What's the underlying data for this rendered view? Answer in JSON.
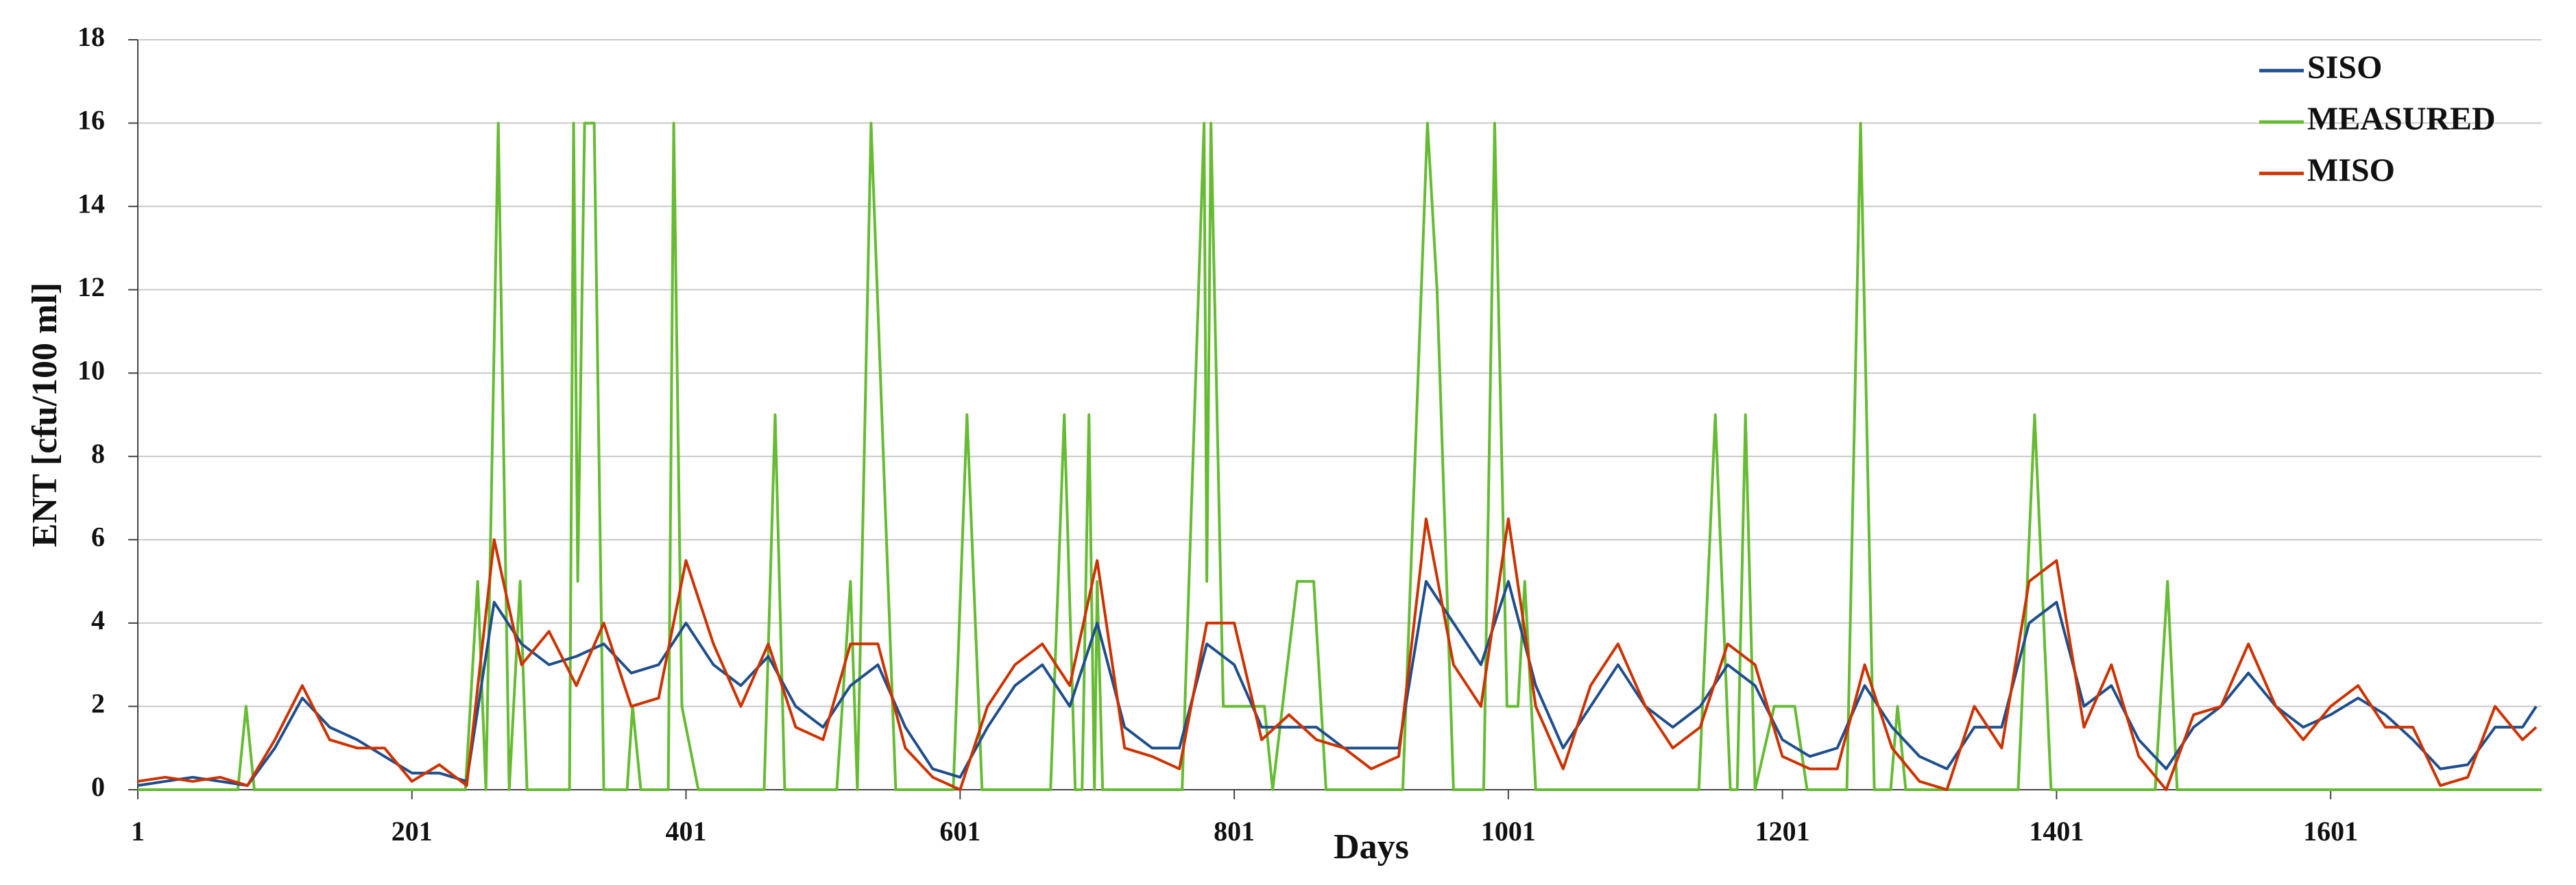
{
  "chart_data": {
    "type": "line",
    "xlabel": "Days",
    "ylabel": "ENT [cfu/100 ml]",
    "x": [
      1,
      21,
      41,
      61,
      81,
      101,
      121,
      141,
      161,
      181,
      201,
      221,
      241,
      261,
      281,
      301,
      321,
      341,
      361,
      381,
      401,
      421,
      441,
      461,
      481,
      501,
      521,
      541,
      561,
      581,
      601,
      621,
      641,
      661,
      681,
      701,
      721,
      741,
      761,
      781,
      801,
      821,
      841,
      861,
      881,
      901,
      921,
      941,
      961,
      981,
      1001,
      1021,
      1041,
      1061,
      1081,
      1101,
      1121,
      1141,
      1161,
      1181,
      1201,
      1221,
      1241,
      1261,
      1281,
      1301,
      1321,
      1341,
      1361,
      1381,
      1401,
      1421,
      1441,
      1461,
      1481,
      1501,
      1521,
      1541,
      1561,
      1581,
      1601,
      1621,
      1641,
      1661,
      1681,
      1701,
      1721,
      1741,
      1751
    ],
    "series": [
      {
        "name": "SISO",
        "color": "#1f4e8c",
        "values": [
          0.1,
          0.2,
          0.3,
          0.2,
          0.1,
          1.0,
          2.2,
          1.5,
          1.2,
          0.8,
          0.4,
          0.4,
          0.2,
          4.5,
          3.5,
          3.0,
          3.2,
          3.5,
          2.8,
          3.0,
          4.0,
          3.0,
          2.5,
          3.2,
          2.0,
          1.5,
          2.5,
          3.0,
          1.5,
          0.5,
          0.3,
          1.5,
          2.5,
          3.0,
          2.0,
          4.0,
          1.5,
          1.0,
          1.0,
          3.5,
          3.0,
          1.5,
          1.5,
          1.5,
          1.0,
          1.0,
          1.0,
          5.0,
          4.0,
          3.0,
          5.0,
          2.5,
          1.0,
          2.0,
          3.0,
          2.0,
          1.5,
          2.0,
          3.0,
          2.5,
          1.2,
          0.8,
          1.0,
          2.5,
          1.5,
          0.8,
          0.5,
          1.5,
          1.5,
          4.0,
          4.5,
          2.0,
          2.5,
          1.2,
          0.5,
          1.5,
          2.0,
          2.8,
          2.0,
          1.5,
          1.8,
          2.2,
          1.8,
          1.2,
          0.5,
          0.6,
          1.5,
          1.5,
          2.0
        ]
      },
      {
        "name": "MEASURED",
        "color": "#66bb33",
        "x": [
          1,
          74,
          80,
          86,
          240,
          249,
          255,
          264,
          272,
          280,
          285,
          316,
          319,
          322,
          327,
          334,
          341,
          358,
          362,
          368,
          388,
          392,
          398,
          410,
          458,
          466,
          473,
          511,
          521,
          526,
          536,
          554,
          596,
          606,
          617,
          667,
          677,
          685,
          690,
          695,
          699,
          701,
          705,
          763,
          779,
          781,
          784,
          793,
          823,
          829,
          847,
          859,
          868,
          924,
          942,
          949,
          961,
          983,
          991,
          1000,
          1008,
          1013,
          1021,
          1140,
          1152,
          1163,
          1168,
          1174,
          1181,
          1195,
          1210,
          1219,
          1248,
          1258,
          1268,
          1280,
          1285,
          1291,
          1373,
          1385,
          1397,
          1473,
          1482,
          1489,
          1755
        ],
        "values": [
          0,
          0,
          2,
          0,
          0,
          5,
          0,
          16,
          0,
          5,
          0,
          0,
          16,
          5,
          16,
          16,
          0,
          0,
          2,
          0,
          0,
          16,
          2,
          0,
          0,
          9,
          0,
          0,
          5,
          0,
          16,
          0,
          0,
          9,
          0,
          0,
          9,
          0,
          0,
          9,
          0,
          5,
          0,
          0,
          16,
          5,
          16,
          2,
          2,
          0,
          5,
          5,
          0,
          0,
          16,
          12,
          0,
          0,
          16,
          2,
          2,
          5,
          0,
          0,
          9,
          0,
          0,
          9,
          0,
          2,
          2,
          0,
          0,
          16,
          0,
          0,
          2,
          0,
          0,
          9,
          0,
          0,
          5,
          0,
          0
        ]
      },
      {
        "name": "MISO",
        "color": "#cc3300",
        "values": [
          0.2,
          0.3,
          0.2,
          0.3,
          0.1,
          1.2,
          2.5,
          1.2,
          1.0,
          1.0,
          0.2,
          0.6,
          0.1,
          6.0,
          3.0,
          3.8,
          2.5,
          4.0,
          2.0,
          2.2,
          5.5,
          3.5,
          2.0,
          3.5,
          1.5,
          1.2,
          3.5,
          3.5,
          1.0,
          0.3,
          0.0,
          2.0,
          3.0,
          3.5,
          2.5,
          5.5,
          1.0,
          0.8,
          0.5,
          4.0,
          4.0,
          1.2,
          1.8,
          1.2,
          1.0,
          0.5,
          0.8,
          6.5,
          3.0,
          2.0,
          6.5,
          2.0,
          0.5,
          2.5,
          3.5,
          2.0,
          1.0,
          1.5,
          3.5,
          3.0,
          0.8,
          0.5,
          0.5,
          3.0,
          1.0,
          0.2,
          0.0,
          2.0,
          1.0,
          5.0,
          5.5,
          1.5,
          3.0,
          0.8,
          0.0,
          1.8,
          2.0,
          3.5,
          2.0,
          1.2,
          2.0,
          2.5,
          1.5,
          1.5,
          0.1,
          0.3,
          2.0,
          1.2,
          1.5
        ]
      }
    ],
    "xlim": [
      1,
      1755
    ],
    "ylim": [
      0,
      18
    ],
    "xticks": [
      1,
      201,
      401,
      601,
      801,
      1001,
      1201,
      1401,
      1601
    ],
    "yticks": [
      0,
      2,
      4,
      6,
      8,
      10,
      12,
      14,
      16,
      18
    ],
    "grid": true,
    "legend": "upper right"
  }
}
